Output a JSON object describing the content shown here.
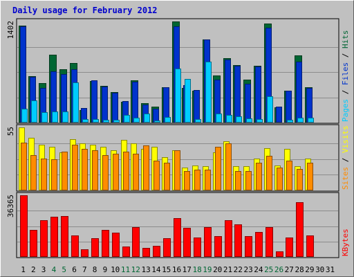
{
  "title": "Daily usage for February 2012",
  "colors": {
    "title": "#0000cc",
    "background": "#c0c0c0",
    "pages": "#00ccff",
    "files": "#0033cc",
    "hits": "#006633",
    "visits": "#ffff00",
    "sites": "#ff8c00",
    "kbytes": "#ff0000",
    "weekend": "#006633",
    "weekday": "#000000"
  },
  "chart_data": [
    {
      "type": "bar",
      "panel": "hits-files-pages",
      "y_max_label": "1402",
      "ylim": [
        0,
        1402
      ],
      "legend": [
        {
          "label": "Pages",
          "color": "#00ccff"
        },
        {
          "label": "Files",
          "color": "#0033cc"
        },
        {
          "label": "Hits",
          "color": "#006633"
        }
      ],
      "categories": [
        "1",
        "2",
        "3",
        "4",
        "5",
        "6",
        "7",
        "8",
        "9",
        "10",
        "11",
        "12",
        "13",
        "14",
        "15",
        "16",
        "17",
        "18",
        "19",
        "20",
        "21",
        "22",
        "23",
        "24",
        "25",
        "26",
        "27",
        "28",
        "29",
        "30",
        "31"
      ],
      "series": [
        {
          "name": "Hits",
          "values": [
            1349,
            647,
            549,
            938,
            742,
            829,
            174,
            576,
            511,
            421,
            285,
            585,
            268,
            221,
            492,
            1402,
            484,
            442,
            1148,
            653,
            892,
            799,
            593,
            787,
            1370,
            216,
            446,
            930,
            494,
            null,
            null
          ]
        },
        {
          "name": "Files",
          "values": [
            1332,
            638,
            480,
            708,
            673,
            736,
            206,
            583,
            500,
            417,
            293,
            565,
            254,
            196,
            491,
            1337,
            514,
            450,
            1148,
            596,
            871,
            790,
            542,
            779,
            1317,
            223,
            446,
            846,
            484,
            null,
            null
          ]
        },
        {
          "name": "Pages",
          "values": [
            196,
            311,
            148,
            149,
            149,
            554,
            48,
            48,
            39,
            42,
            110,
            64,
            129,
            31,
            81,
            750,
            605,
            50,
            844,
            121,
            107,
            90,
            53,
            45,
            363,
            11,
            34,
            71,
            65,
            null,
            null
          ]
        }
      ]
    },
    {
      "type": "bar",
      "panel": "visits-sites",
      "y_max_label": "55",
      "ylim": [
        0,
        55
      ],
      "legend": [
        {
          "label": "Sites",
          "color": "#ff8c00"
        },
        {
          "label": "Visits",
          "color": "#ffff00"
        }
      ],
      "categories": [
        "1",
        "2",
        "3",
        "4",
        "5",
        "6",
        "7",
        "8",
        "9",
        "10",
        "11",
        "12",
        "13",
        "14",
        "15",
        "16",
        "17",
        "18",
        "19",
        "20",
        "21",
        "22",
        "23",
        "24",
        "25",
        "26",
        "27",
        "28",
        "29",
        "30",
        "31"
      ],
      "series": [
        {
          "name": "Visits",
          "values": [
            55,
            46,
            40,
            38,
            33,
            45,
            41,
            40,
            38,
            35,
            44,
            41,
            36,
            38,
            29,
            35,
            20,
            22,
            21,
            33,
            43,
            21,
            21,
            28,
            37,
            22,
            36,
            21,
            28,
            null,
            null
          ]
        },
        {
          "name": "Sites",
          "values": [
            42,
            31,
            28,
            27,
            34,
            40,
            36,
            35,
            31,
            32,
            34,
            32,
            39,
            26,
            24,
            35,
            17,
            18,
            18,
            38,
            41,
            17,
            17,
            24,
            30,
            20,
            26,
            19,
            24,
            null,
            null
          ]
        }
      ]
    },
    {
      "type": "bar",
      "panel": "kbytes",
      "y_max_label": "36365",
      "ylim": [
        0,
        36365
      ],
      "legend": [
        {
          "label": "KBytes",
          "color": "#ff0000"
        }
      ],
      "categories": [
        "1",
        "2",
        "3",
        "4",
        "5",
        "6",
        "7",
        "8",
        "9",
        "10",
        "11",
        "12",
        "13",
        "14",
        "15",
        "16",
        "17",
        "18",
        "19",
        "20",
        "21",
        "22",
        "23",
        "24",
        "25",
        "26",
        "27",
        "28",
        "29",
        "30",
        "31"
      ],
      "series": [
        {
          "name": "KBytes",
          "values": [
            36365,
            15870,
            21690,
            23620,
            24050,
            12520,
            4660,
            10990,
            15860,
            14490,
            6190,
            17660,
            5410,
            6670,
            10990,
            23080,
            17030,
            11540,
            17530,
            12350,
            21690,
            19250,
            12350,
            14610,
            17510,
            3470,
            11480,
            32210,
            12800,
            null,
            null
          ]
        }
      ]
    }
  ],
  "x_axis": {
    "labels": [
      "1",
      "2",
      "3",
      "4",
      "5",
      "6",
      "7",
      "8",
      "9",
      "10",
      "11",
      "12",
      "13",
      "14",
      "15",
      "16",
      "17",
      "18",
      "19",
      "20",
      "21",
      "22",
      "23",
      "24",
      "25",
      "26",
      "27",
      "28",
      "29",
      "30",
      "31"
    ],
    "weekend": [
      "4",
      "5",
      "11",
      "12",
      "18",
      "19",
      "25",
      "26"
    ]
  }
}
